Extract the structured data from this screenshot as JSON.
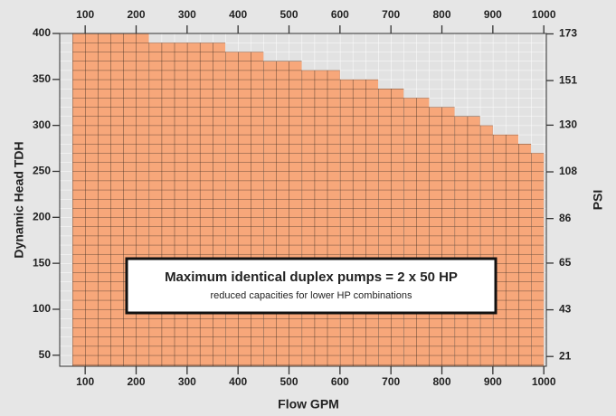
{
  "chart_data": {
    "type": "histogram",
    "bins": [
      75,
      225,
      375,
      450,
      525,
      600,
      675,
      725,
      775,
      825,
      875,
      900,
      950,
      975,
      1000
    ],
    "values": [
      400,
      390,
      380,
      370,
      360,
      350,
      340,
      330,
      320,
      310,
      300,
      290,
      280,
      270
    ],
    "color": "#f7a77a",
    "x_label": "Flow GPM",
    "y_label": "Dynamic Head TDH",
    "y2_label": "PSI",
    "xlim": [
      50,
      1005
    ],
    "xticks": [
      100,
      200,
      300,
      400,
      500,
      600,
      700,
      800,
      900,
      1000
    ],
    "ylim": [
      38,
      400
    ],
    "yticks": [
      50,
      100,
      150,
      200,
      250,
      300,
      350,
      400
    ],
    "y2lim": [
      16.4,
      173.2
    ],
    "y2ticks": [
      21,
      43,
      65,
      86,
      108,
      130,
      151,
      173
    ],
    "annotation": {
      "title": "Maximum identical duplex pumps = 2 x 50 HP",
      "subtitle": "reduced capacities for lower HP combinations"
    }
  }
}
